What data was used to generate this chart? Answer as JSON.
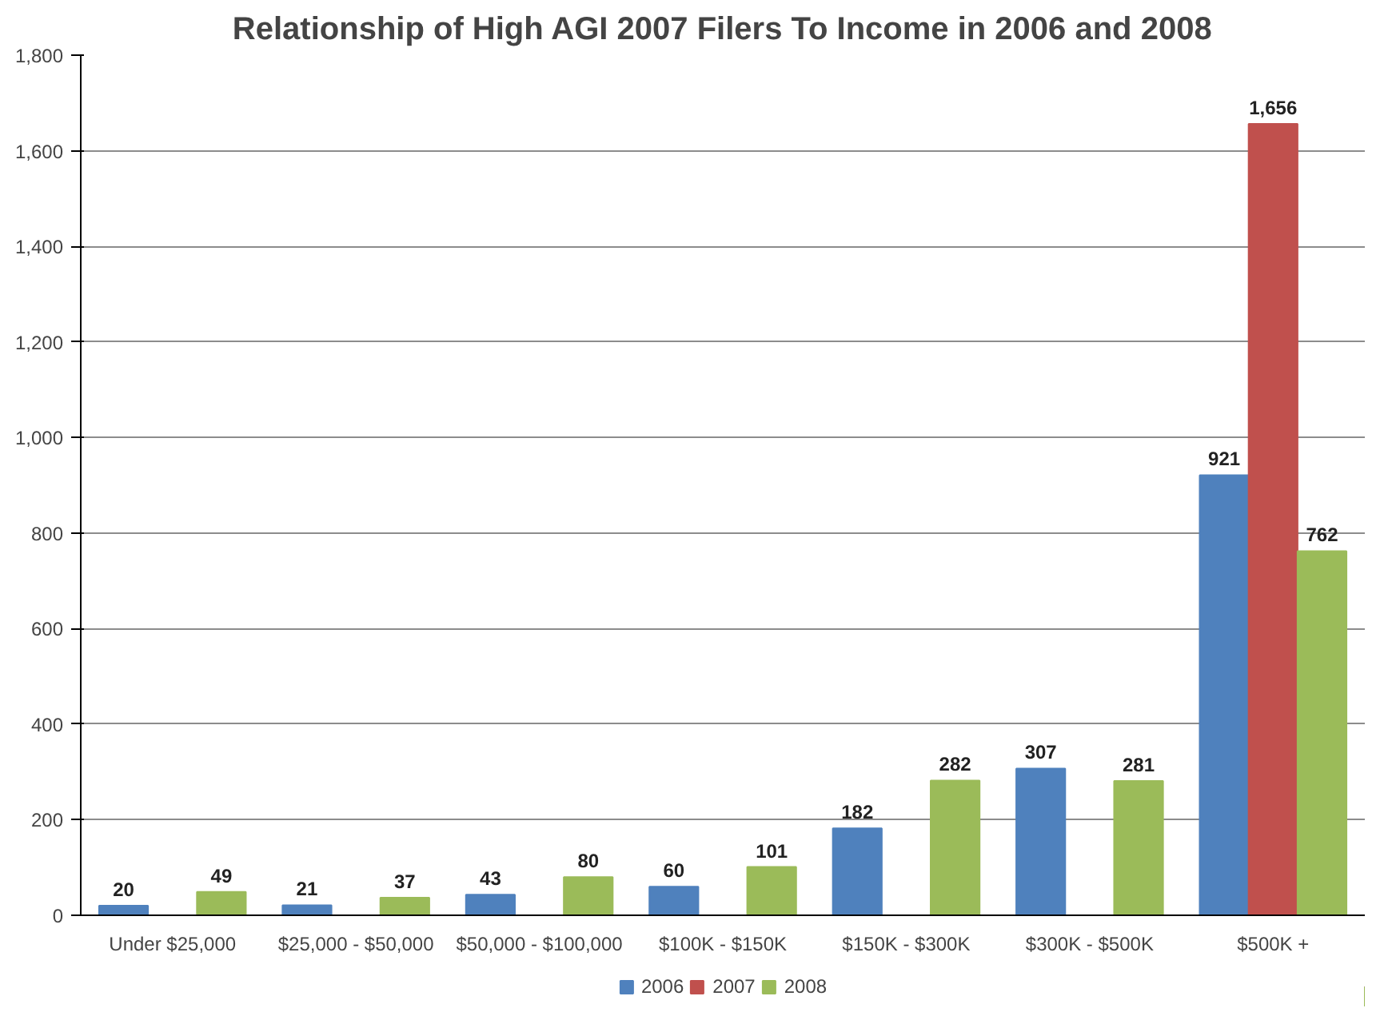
{
  "chart_data": {
    "type": "bar",
    "title": "Relationship of High AGI 2007 Filers To Income in 2006 and 2008",
    "categories": [
      "Under $25,000",
      "$25,000 - $50,000",
      "$50,000 - $100,000",
      "$100K - $150K",
      "$150K - $300K",
      "$300K - $500K",
      "$500K +"
    ],
    "series": [
      {
        "name": "2006",
        "color": "#4f81bd",
        "values": [
          20,
          21,
          43,
          60,
          182,
          307,
          921
        ],
        "value_labels": [
          "20",
          "21",
          "43",
          "60",
          "182",
          "307",
          "921"
        ]
      },
      {
        "name": "2007",
        "color": "#c0504d",
        "values": [
          null,
          null,
          null,
          null,
          null,
          null,
          1656
        ],
        "value_labels": [
          null,
          null,
          null,
          null,
          null,
          null,
          "1,656"
        ]
      },
      {
        "name": "2008",
        "color": "#9bbb59",
        "values": [
          49,
          37,
          80,
          101,
          282,
          281,
          762
        ],
        "value_labels": [
          "49",
          "37",
          "80",
          "101",
          "282",
          "281",
          "762"
        ]
      }
    ],
    "ylim": [
      0,
      1800
    ],
    "yticks": [
      0,
      {
        "value": 200,
        "label": "200"
      },
      {
        "value": 400,
        "label": "400"
      },
      {
        "value": 600,
        "label": "600"
      },
      {
        "value": 800,
        "label": "800"
      },
      {
        "value": 1000,
        "label": "1,000"
      },
      {
        "value": 1200,
        "label": "1,200"
      },
      {
        "value": 1400,
        "label": "1,400"
      },
      {
        "value": 1600,
        "label": "1,600"
      },
      {
        "value": 1800,
        "label": "1,800"
      }
    ],
    "grid": "y",
    "legend": "bottom"
  }
}
